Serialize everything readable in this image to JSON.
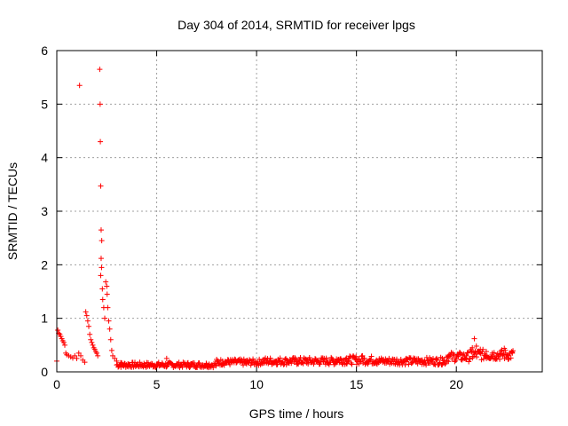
{
  "chart_data": {
    "type": "scatter",
    "title": "Day 304 of 2014, SRMTID for receiver lpgs",
    "xlabel": "GPS time / hours",
    "ylabel": "SRMTID / TECUs",
    "xlim": [
      0,
      24.3
    ],
    "ylim": [
      0,
      6
    ],
    "xticks": [
      0,
      5,
      10,
      15,
      20
    ],
    "yticks": [
      0,
      1,
      2,
      3,
      4,
      5,
      6
    ],
    "grid": true,
    "marker": "plus",
    "marker_color": "#ff0000",
    "series": [
      {
        "name": "SRMTID",
        "points": [
          [
            0.0,
            0.2
          ],
          [
            0.05,
            0.78
          ],
          [
            0.1,
            0.72
          ],
          [
            0.15,
            0.7
          ],
          [
            0.2,
            0.66
          ],
          [
            0.25,
            0.62
          ],
          [
            0.3,
            0.58
          ],
          [
            0.35,
            0.55
          ],
          [
            0.4,
            0.5
          ],
          [
            0.45,
            0.35
          ],
          [
            0.5,
            0.32
          ],
          [
            0.6,
            0.3
          ],
          [
            0.7,
            0.28
          ],
          [
            0.8,
            0.26
          ],
          [
            0.9,
            0.3
          ],
          [
            1.0,
            0.25
          ],
          [
            1.1,
            0.35
          ],
          [
            1.2,
            0.3
          ],
          [
            1.14,
            5.35
          ],
          [
            1.3,
            0.22
          ],
          [
            1.4,
            0.18
          ],
          [
            1.45,
            1.12
          ],
          [
            1.5,
            1.05
          ],
          [
            1.55,
            0.95
          ],
          [
            1.6,
            0.85
          ],
          [
            1.65,
            0.7
          ],
          [
            1.7,
            0.6
          ],
          [
            1.75,
            0.55
          ],
          [
            1.8,
            0.5
          ],
          [
            1.85,
            0.45
          ],
          [
            1.9,
            0.42
          ],
          [
            1.95,
            0.38
          ],
          [
            2.0,
            0.35
          ],
          [
            2.05,
            0.3
          ],
          [
            2.15,
            5.65
          ],
          [
            2.17,
            5.0
          ],
          [
            2.18,
            4.3
          ],
          [
            2.2,
            3.47
          ],
          [
            2.22,
            2.65
          ],
          [
            2.25,
            2.45
          ],
          [
            2.22,
            2.12
          ],
          [
            2.24,
            1.95
          ],
          [
            2.2,
            1.8
          ],
          [
            2.28,
            1.55
          ],
          [
            2.3,
            1.35
          ],
          [
            2.35,
            1.2
          ],
          [
            2.4,
            1.0
          ],
          [
            2.45,
            1.68
          ],
          [
            2.5,
            1.6
          ],
          [
            2.52,
            1.45
          ],
          [
            2.55,
            1.2
          ],
          [
            2.6,
            0.95
          ],
          [
            2.65,
            0.8
          ],
          [
            2.7,
            0.6
          ],
          [
            2.75,
            0.4
          ],
          [
            2.8,
            0.3
          ],
          [
            2.9,
            0.25
          ],
          [
            3.0,
            0.2
          ],
          [
            3.2,
            0.17
          ],
          [
            3.4,
            0.15
          ],
          [
            3.6,
            0.14
          ],
          [
            3.8,
            0.13
          ],
          [
            4.0,
            0.12
          ],
          [
            4.3,
            0.12
          ],
          [
            4.6,
            0.13
          ],
          [
            5.0,
            0.12
          ],
          [
            5.3,
            0.14
          ],
          [
            5.5,
            0.25
          ],
          [
            5.8,
            0.13
          ],
          [
            6.2,
            0.12
          ],
          [
            6.6,
            0.13
          ],
          [
            7.0,
            0.12
          ],
          [
            7.5,
            0.14
          ],
          [
            8.0,
            0.15
          ],
          [
            8.3,
            0.2
          ],
          [
            8.6,
            0.22
          ],
          [
            9.0,
            0.18
          ],
          [
            9.5,
            0.15
          ],
          [
            10.0,
            0.14
          ],
          [
            10.5,
            0.17
          ],
          [
            11.0,
            0.2
          ],
          [
            11.5,
            0.22
          ],
          [
            12.0,
            0.2
          ],
          [
            12.5,
            0.22
          ],
          [
            13.0,
            0.2
          ],
          [
            13.5,
            0.23
          ],
          [
            14.0,
            0.24
          ],
          [
            14.5,
            0.26
          ],
          [
            15.0,
            0.22
          ],
          [
            15.3,
            0.3
          ],
          [
            15.6,
            0.2
          ],
          [
            16.0,
            0.22
          ],
          [
            16.5,
            0.2
          ],
          [
            17.0,
            0.2
          ],
          [
            17.5,
            0.25
          ],
          [
            18.0,
            0.2
          ],
          [
            18.3,
            0.22
          ],
          [
            18.6,
            0.2
          ],
          [
            19.0,
            0.22
          ],
          [
            19.3,
            0.25
          ],
          [
            19.6,
            0.3
          ],
          [
            20.0,
            0.28
          ],
          [
            20.3,
            0.32
          ],
          [
            20.5,
            0.3
          ],
          [
            20.8,
            0.45
          ],
          [
            20.9,
            0.62
          ],
          [
            21.0,
            0.48
          ],
          [
            21.2,
            0.42
          ],
          [
            21.5,
            0.38
          ],
          [
            21.8,
            0.35
          ],
          [
            22.0,
            0.3
          ],
          [
            22.2,
            0.32
          ],
          [
            22.4,
            0.44
          ],
          [
            22.6,
            0.3
          ],
          [
            22.8,
            0.35
          ]
        ]
      }
    ],
    "baseline_bands": [
      {
        "from": 3.0,
        "to": 8.0,
        "center": 0.13,
        "spread": 0.05
      },
      {
        "from": 8.0,
        "to": 10.2,
        "center": 0.18,
        "spread": 0.06
      },
      {
        "from": 10.2,
        "to": 14.0,
        "center": 0.2,
        "spread": 0.07
      },
      {
        "from": 14.0,
        "to": 16.0,
        "center": 0.22,
        "spread": 0.08
      },
      {
        "from": 16.0,
        "to": 19.5,
        "center": 0.2,
        "spread": 0.07
      },
      {
        "from": 19.5,
        "to": 20.7,
        "center": 0.28,
        "spread": 0.09
      },
      {
        "from": 20.7,
        "to": 22.85,
        "center": 0.32,
        "spread": 0.1
      }
    ]
  }
}
